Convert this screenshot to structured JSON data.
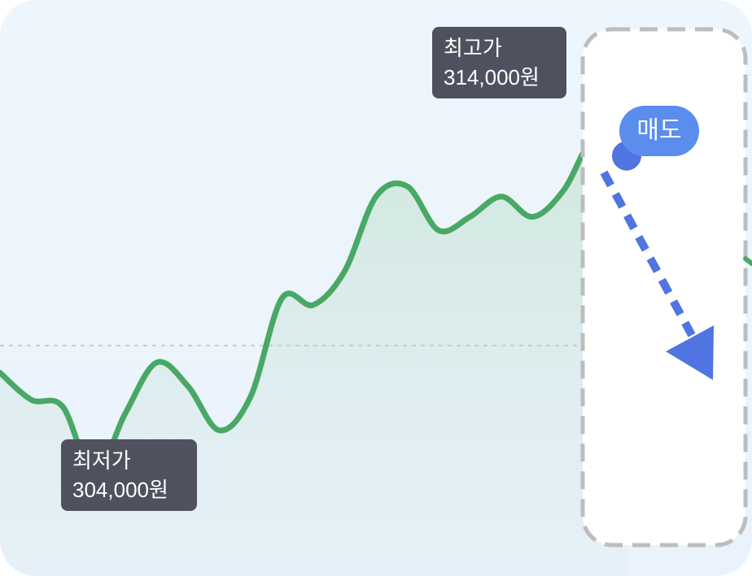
{
  "chart_data": {
    "type": "line",
    "series": [
      {
        "points": [
          [
            0,
            307.0
          ],
          [
            1,
            306.2
          ],
          [
            2,
            306.0
          ],
          [
            3,
            304.0
          ],
          [
            4,
            305.8
          ],
          [
            5,
            307.3
          ],
          [
            6,
            306.6
          ],
          [
            7,
            305.3
          ],
          [
            8,
            306.3
          ],
          [
            9,
            309.2
          ],
          [
            10,
            309.0
          ],
          [
            11,
            310.0
          ],
          [
            12,
            312.2
          ],
          [
            13,
            312.5
          ],
          [
            14,
            311.2
          ],
          [
            15,
            311.6
          ],
          [
            16,
            312.2
          ],
          [
            17,
            311.6
          ],
          [
            18,
            312.4
          ],
          [
            19,
            314.0
          ],
          [
            20,
            313.4
          ]
        ]
      }
    ],
    "reference_line": 307.8,
    "ylim": [
      301,
      318
    ],
    "xlim": [
      0,
      24
    ]
  },
  "annotations": {
    "low": {
      "label": "최저가",
      "value": "304,000원"
    },
    "high": {
      "label": "최고가",
      "value": "314,000원"
    },
    "sell": {
      "label": "매도"
    }
  },
  "colors": {
    "line": "#49a865",
    "area": "#cfe7dd",
    "low_marker": "#f2424a",
    "sell_marker": "#5074e0",
    "arrow": "#5074e0",
    "tooltip_bg": "#4f525e",
    "badge_bg": "#5b8def",
    "dashed_box": "#bfbfbf"
  }
}
